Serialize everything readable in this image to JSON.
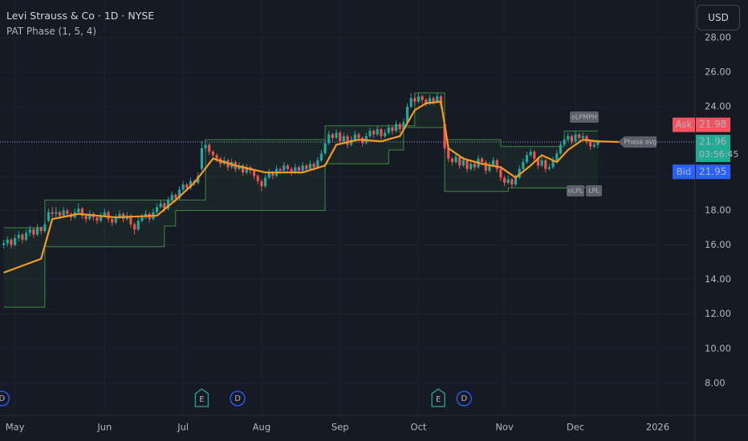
{
  "header": {
    "symbol": "Levi Strauss & Co · 1D · NYSE",
    "indicator": "PAT Phase (1, 5, 4)"
  },
  "currency": "USD",
  "chart_data": {
    "type": "candlestick",
    "colors": {
      "up": "#26a69a",
      "down": "#ef5350"
    },
    "xlim": [
      -1,
      185
    ],
    "xticks": [
      {
        "value": 3,
        "label": "May"
      },
      {
        "value": 27,
        "label": "Jun"
      },
      {
        "value": 48,
        "label": "Jul"
      },
      {
        "value": 69,
        "label": "Aug"
      },
      {
        "value": 90,
        "label": "Sep"
      },
      {
        "value": 111,
        "label": "Oct"
      },
      {
        "value": 134,
        "label": "Nov"
      },
      {
        "value": 153,
        "label": "Dec"
      },
      {
        "value": 175,
        "label": "2026"
      }
    ],
    "ylim": [
      6.14,
      30.18
    ],
    "yticks": [
      {
        "value": 8,
        "label": "8.00"
      },
      {
        "value": 10,
        "label": "10.00"
      },
      {
        "value": 12,
        "label": "12.00"
      },
      {
        "value": 14,
        "label": "14.00"
      },
      {
        "value": 16,
        "label": "16.00"
      },
      {
        "value": 18,
        "label": "18.00"
      },
      {
        "value": 20,
        "label": "20.00"
      },
      {
        "value": 22,
        "label": "22.00"
      },
      {
        "value": 24,
        "label": "24.00"
      },
      {
        "value": 26,
        "label": "26.00"
      },
      {
        "value": 28,
        "label": "28.00"
      }
    ],
    "grid": true,
    "ohlc": [
      [
        16.0,
        16.3,
        15.8,
        16.1
      ],
      [
        16.1,
        16.5,
        15.9,
        16.3
      ],
      [
        16.3,
        16.4,
        15.8,
        16.0
      ],
      [
        16.0,
        16.6,
        15.9,
        16.4
      ],
      [
        16.4,
        16.8,
        16.2,
        16.6
      ],
      [
        16.6,
        16.7,
        16.1,
        16.3
      ],
      [
        16.3,
        16.9,
        16.2,
        16.7
      ],
      [
        16.7,
        17.1,
        16.5,
        16.9
      ],
      [
        16.9,
        17.0,
        16.4,
        16.6
      ],
      [
        16.6,
        17.2,
        16.5,
        17.0
      ],
      [
        17.0,
        17.1,
        16.6,
        16.8
      ],
      [
        16.8,
        17.4,
        16.7,
        17.2
      ],
      [
        17.4,
        18.1,
        17.3,
        17.9
      ],
      [
        17.9,
        18.2,
        17.6,
        17.8
      ],
      [
        17.8,
        18.2,
        17.6,
        17.9
      ],
      [
        17.9,
        18.0,
        17.5,
        17.7
      ],
      [
        17.7,
        18.2,
        17.6,
        18.0
      ],
      [
        18.0,
        18.1,
        17.6,
        17.8
      ],
      [
        17.8,
        17.9,
        17.4,
        17.6
      ],
      [
        17.6,
        18.1,
        17.5,
        17.9
      ],
      [
        17.9,
        18.4,
        17.8,
        18.1
      ],
      [
        18.1,
        18.2,
        17.5,
        17.7
      ],
      [
        17.7,
        17.8,
        17.3,
        17.5
      ],
      [
        17.5,
        18.0,
        17.4,
        17.8
      ],
      [
        17.8,
        17.9,
        17.4,
        17.6
      ],
      [
        17.6,
        17.7,
        17.2,
        17.4
      ],
      [
        17.4,
        17.9,
        17.3,
        17.7
      ],
      [
        17.7,
        18.1,
        17.6,
        17.9
      ],
      [
        17.9,
        18.0,
        17.3,
        17.5
      ],
      [
        17.5,
        17.6,
        17.1,
        17.3
      ],
      [
        17.3,
        17.8,
        17.2,
        17.6
      ],
      [
        17.6,
        18.0,
        17.5,
        17.8
      ],
      [
        17.8,
        17.9,
        17.3,
        17.5
      ],
      [
        17.5,
        17.9,
        17.4,
        17.7
      ],
      [
        17.7,
        17.8,
        17.0,
        17.2
      ],
      [
        17.2,
        17.3,
        16.6,
        16.9
      ],
      [
        16.9,
        17.6,
        16.8,
        17.4
      ],
      [
        17.4,
        17.8,
        17.3,
        17.6
      ],
      [
        17.6,
        18.0,
        17.5,
        17.8
      ],
      [
        17.8,
        17.9,
        17.3,
        17.5
      ],
      [
        17.5,
        18.1,
        17.4,
        17.9
      ],
      [
        17.9,
        18.4,
        17.8,
        18.2
      ],
      [
        18.2,
        18.6,
        18.1,
        18.4
      ],
      [
        18.4,
        18.5,
        17.9,
        18.1
      ],
      [
        18.1,
        18.8,
        18.0,
        18.6
      ],
      [
        18.6,
        19.1,
        18.5,
        18.9
      ],
      [
        18.9,
        19.0,
        18.5,
        18.7
      ],
      [
        18.7,
        19.4,
        18.6,
        19.2
      ],
      [
        19.2,
        19.7,
        19.1,
        19.5
      ],
      [
        19.5,
        19.6,
        19.1,
        19.3
      ],
      [
        19.3,
        19.9,
        19.2,
        19.7
      ],
      [
        19.7,
        19.8,
        19.4,
        19.6
      ],
      [
        19.6,
        20.2,
        19.5,
        20.0
      ],
      [
        20.4,
        22.0,
        20.3,
        21.6
      ],
      [
        21.6,
        22.1,
        21.4,
        21.8
      ],
      [
        21.8,
        21.9,
        21.2,
        21.4
      ],
      [
        21.4,
        21.5,
        21.0,
        21.2
      ],
      [
        21.2,
        21.3,
        20.8,
        21.0
      ],
      [
        21.0,
        21.1,
        20.5,
        20.7
      ],
      [
        20.7,
        21.1,
        20.6,
        20.9
      ],
      [
        20.9,
        21.0,
        20.3,
        20.5
      ],
      [
        20.5,
        21.0,
        20.4,
        20.8
      ],
      [
        20.8,
        20.9,
        20.2,
        20.4
      ],
      [
        20.4,
        20.8,
        20.3,
        20.6
      ],
      [
        20.6,
        20.7,
        20.0,
        20.2
      ],
      [
        20.2,
        20.7,
        20.1,
        20.5
      ],
      [
        20.5,
        20.6,
        20.1,
        20.3
      ],
      [
        20.3,
        20.4,
        19.8,
        20.0
      ],
      [
        20.0,
        20.1,
        19.5,
        19.7
      ],
      [
        19.7,
        19.8,
        19.1,
        19.4
      ],
      [
        19.4,
        20.1,
        19.3,
        19.9
      ],
      [
        19.9,
        20.4,
        19.8,
        20.2
      ],
      [
        20.2,
        20.3,
        19.8,
        20.0
      ],
      [
        20.0,
        20.6,
        19.9,
        20.4
      ],
      [
        20.4,
        20.5,
        20.1,
        20.3
      ],
      [
        20.3,
        20.8,
        20.2,
        20.6
      ],
      [
        20.6,
        20.7,
        20.2,
        20.4
      ],
      [
        20.4,
        20.5,
        20.0,
        20.2
      ],
      [
        20.2,
        20.7,
        20.1,
        20.5
      ],
      [
        20.5,
        20.6,
        20.1,
        20.3
      ],
      [
        20.3,
        20.8,
        20.2,
        20.6
      ],
      [
        20.6,
        20.7,
        20.2,
        20.4
      ],
      [
        20.4,
        20.9,
        20.3,
        20.7
      ],
      [
        20.7,
        20.8,
        20.3,
        20.5
      ],
      [
        20.5,
        21.1,
        20.4,
        20.9
      ],
      [
        20.9,
        21.5,
        20.8,
        21.3
      ],
      [
        21.3,
        22.1,
        21.2,
        21.9
      ],
      [
        21.9,
        22.6,
        21.8,
        22.4
      ],
      [
        22.4,
        22.5,
        22.0,
        22.2
      ],
      [
        22.2,
        22.7,
        22.1,
        22.5
      ],
      [
        22.5,
        22.6,
        21.8,
        22.0
      ],
      [
        22.0,
        22.5,
        21.9,
        22.3
      ],
      [
        22.3,
        22.4,
        21.6,
        21.8
      ],
      [
        21.8,
        22.3,
        21.7,
        22.1
      ],
      [
        22.1,
        22.6,
        22.0,
        22.4
      ],
      [
        22.4,
        22.5,
        22.0,
        22.2
      ],
      [
        22.2,
        22.3,
        21.7,
        21.9
      ],
      [
        21.9,
        22.5,
        21.8,
        22.3
      ],
      [
        22.3,
        22.8,
        22.2,
        22.6
      ],
      [
        22.6,
        22.7,
        22.2,
        22.4
      ],
      [
        22.4,
        22.9,
        22.3,
        22.7
      ],
      [
        22.7,
        22.8,
        22.1,
        22.3
      ],
      [
        22.3,
        22.7,
        22.2,
        22.5
      ],
      [
        22.5,
        23.0,
        22.4,
        22.8
      ],
      [
        22.8,
        22.9,
        22.4,
        22.6
      ],
      [
        22.6,
        23.2,
        22.5,
        23.0
      ],
      [
        23.0,
        23.1,
        22.5,
        22.7
      ],
      [
        22.7,
        23.3,
        22.6,
        23.1
      ],
      [
        23.1,
        24.2,
        23.0,
        24.0
      ],
      [
        24.0,
        24.8,
        23.9,
        24.5
      ],
      [
        24.5,
        24.7,
        24.1,
        24.3
      ],
      [
        24.3,
        24.8,
        24.2,
        24.6
      ],
      [
        24.6,
        24.7,
        24.2,
        24.4
      ],
      [
        24.4,
        24.5,
        24.0,
        24.2
      ],
      [
        24.2,
        24.7,
        24.1,
        24.5
      ],
      [
        24.5,
        24.6,
        24.1,
        24.3
      ],
      [
        24.3,
        24.8,
        24.2,
        24.6
      ],
      [
        24.6,
        24.7,
        23.9,
        24.1
      ],
      [
        23.0,
        23.2,
        21.4,
        21.6
      ],
      [
        21.6,
        21.7,
        20.8,
        21.0
      ],
      [
        21.0,
        21.1,
        20.6,
        20.8
      ],
      [
        20.8,
        21.3,
        20.7,
        21.1
      ],
      [
        21.1,
        21.2,
        20.4,
        20.6
      ],
      [
        20.6,
        21.1,
        20.5,
        20.9
      ],
      [
        20.9,
        21.0,
        20.2,
        20.4
      ],
      [
        20.4,
        20.9,
        20.3,
        20.7
      ],
      [
        20.7,
        20.8,
        20.3,
        20.5
      ],
      [
        20.5,
        21.2,
        20.4,
        21.0
      ],
      [
        21.0,
        21.1,
        20.6,
        20.8
      ],
      [
        20.8,
        20.9,
        20.1,
        20.3
      ],
      [
        20.3,
        20.8,
        20.2,
        20.6
      ],
      [
        20.6,
        21.1,
        20.5,
        20.9
      ],
      [
        20.9,
        21.0,
        20.2,
        20.4
      ],
      [
        20.4,
        20.5,
        19.7,
        19.9
      ],
      [
        19.9,
        20.0,
        19.4,
        19.6
      ],
      [
        19.6,
        20.0,
        19.5,
        19.8
      ],
      [
        19.8,
        19.9,
        19.3,
        19.5
      ],
      [
        19.5,
        20.1,
        19.4,
        19.9
      ],
      [
        19.9,
        20.6,
        19.8,
        20.4
      ],
      [
        20.4,
        21.0,
        20.3,
        20.8
      ],
      [
        20.8,
        21.4,
        20.7,
        21.2
      ],
      [
        21.2,
        21.6,
        21.1,
        21.4
      ],
      [
        21.4,
        21.5,
        20.8,
        21.0
      ],
      [
        21.0,
        21.1,
        20.4,
        20.6
      ],
      [
        20.6,
        21.1,
        20.5,
        20.9
      ],
      [
        20.9,
        21.0,
        20.2,
        20.4
      ],
      [
        20.4,
        20.7,
        20.3,
        20.5
      ],
      [
        20.5,
        21.1,
        20.4,
        20.9
      ],
      [
        20.9,
        21.5,
        20.8,
        21.3
      ],
      [
        21.3,
        22.0,
        21.2,
        21.8
      ],
      [
        21.8,
        22.3,
        21.7,
        22.1
      ],
      [
        22.1,
        22.5,
        22.0,
        22.3
      ],
      [
        22.3,
        22.4,
        21.8,
        22.0
      ],
      [
        22.0,
        22.6,
        21.9,
        22.4
      ],
      [
        22.4,
        22.5,
        22.0,
        22.2
      ],
      [
        22.2,
        22.5,
        22.1,
        22.3
      ],
      [
        22.3,
        22.4,
        21.8,
        22.0
      ],
      [
        22.0,
        22.1,
        21.5,
        21.7
      ],
      [
        21.7,
        22.0,
        21.6,
        21.8
      ],
      [
        21.8,
        22.1,
        21.6,
        21.96
      ]
    ],
    "bands": [
      {
        "color": "#3d8b40",
        "x": [
          0,
          11,
          54,
          86,
          110,
          118,
          133,
          150
        ],
        "values": [
          17.0,
          18.6,
          22.1,
          22.9,
          24.8,
          22.1,
          21.7,
          22.6
        ]
      },
      {
        "color": "#3d8b40",
        "x": [
          0,
          11,
          43,
          46,
          86,
          103,
          107,
          118,
          135
        ],
        "values": [
          12.4,
          15.9,
          17.1,
          18.0,
          20.7,
          21.5,
          22.8,
          19.1,
          19.3
        ]
      }
    ],
    "band_fill": "rgba(56,142,60,0.10)",
    "phase_avg": {
      "name": "Phase avg",
      "color": "#f59a23",
      "x": [
        0,
        10,
        13,
        20,
        30,
        41,
        46,
        51,
        56,
        62,
        70,
        80,
        86,
        89,
        95,
        101,
        106,
        110,
        113,
        117,
        119,
        123,
        128,
        133,
        137,
        141,
        144,
        148,
        151,
        155,
        159,
        165
      ],
      "values": [
        14.4,
        15.2,
        17.5,
        17.8,
        17.6,
        17.7,
        18.6,
        19.6,
        21.0,
        20.6,
        20.2,
        20.2,
        20.6,
        21.8,
        22.1,
        22.0,
        22.3,
        23.8,
        24.2,
        24.3,
        21.6,
        21.0,
        20.7,
        20.5,
        19.9,
        20.6,
        21.2,
        20.8,
        21.5,
        22.1,
        22.0,
        21.96
      ]
    },
    "labels": [
      "oLPMPH",
      "oLPL",
      "LPL"
    ],
    "price_labels": {
      "ask": {
        "name": "Ask",
        "value": 21.98,
        "label": "21.98",
        "color": "#f7525f"
      },
      "last": {
        "value": 21.96,
        "label": "21.96",
        "countdown": "03:56:45",
        "color": "#22ab94"
      },
      "bid": {
        "name": "Bid",
        "value": 21.95,
        "label": "21.95",
        "color": "#2962ff"
      }
    },
    "events": [
      {
        "letter": "D",
        "x": -0.5
      },
      {
        "letter": "E",
        "x": 53
      },
      {
        "letter": "D",
        "x": 62.6
      },
      {
        "letter": "E",
        "x": 116.3
      },
      {
        "letter": "D",
        "x": 123.2
      }
    ]
  }
}
